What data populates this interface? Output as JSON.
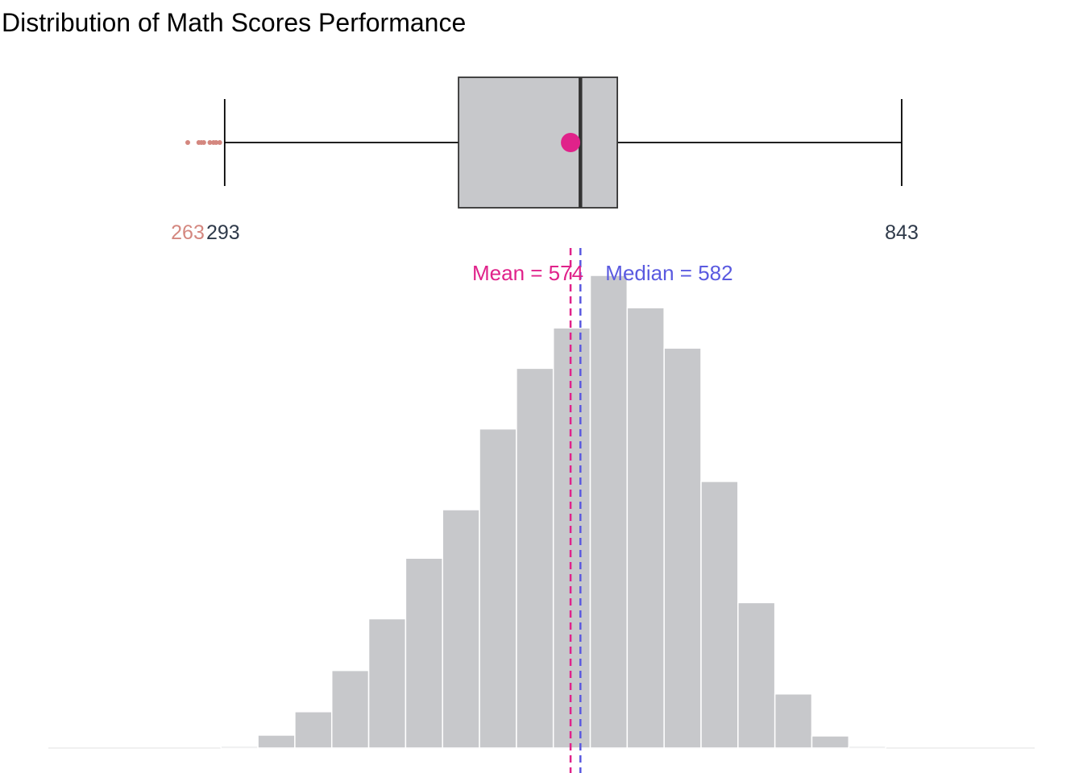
{
  "chart_data": {
    "type": "bar",
    "title": "Distribution of Math Scores Performance",
    "xlim": [
      200,
      900
    ],
    "colors": {
      "bar_fill": "#c7c8cb",
      "mean": "#e0228a",
      "median": "#5a5ae0",
      "outlier": "#d4877f",
      "whisker_label": "#2f3a4a"
    },
    "histogram": {
      "bin_width": 30,
      "bins": [
        {
          "start": 290,
          "end": 320,
          "count": 2
        },
        {
          "start": 320,
          "end": 350,
          "count": 16
        },
        {
          "start": 350,
          "end": 380,
          "count": 45
        },
        {
          "start": 380,
          "end": 410,
          "count": 96
        },
        {
          "start": 410,
          "end": 440,
          "count": 160
        },
        {
          "start": 440,
          "end": 470,
          "count": 235
        },
        {
          "start": 470,
          "end": 500,
          "count": 295
        },
        {
          "start": 500,
          "end": 530,
          "count": 395
        },
        {
          "start": 530,
          "end": 560,
          "count": 470
        },
        {
          "start": 560,
          "end": 590,
          "count": 520
        },
        {
          "start": 590,
          "end": 620,
          "count": 585
        },
        {
          "start": 620,
          "end": 650,
          "count": 545
        },
        {
          "start": 650,
          "end": 680,
          "count": 495
        },
        {
          "start": 680,
          "end": 710,
          "count": 330
        },
        {
          "start": 710,
          "end": 740,
          "count": 180
        },
        {
          "start": 740,
          "end": 770,
          "count": 67
        },
        {
          "start": 770,
          "end": 800,
          "count": 15
        },
        {
          "start": 800,
          "end": 830,
          "count": 2
        }
      ],
      "ylim": [
        0,
        585
      ]
    },
    "boxplot": {
      "whisker_low": 293,
      "q1": 483,
      "median": 582,
      "q3": 612,
      "whisker_high": 843,
      "mean": 574,
      "outliers": [
        263,
        272,
        274,
        276,
        281,
        284,
        286,
        289
      ]
    },
    "labels": {
      "whisker_low_label": "293",
      "whisker_high_label": "843",
      "outlier_label": "263",
      "mean_label": "Mean = 574",
      "median_label": "Median = 582"
    }
  }
}
